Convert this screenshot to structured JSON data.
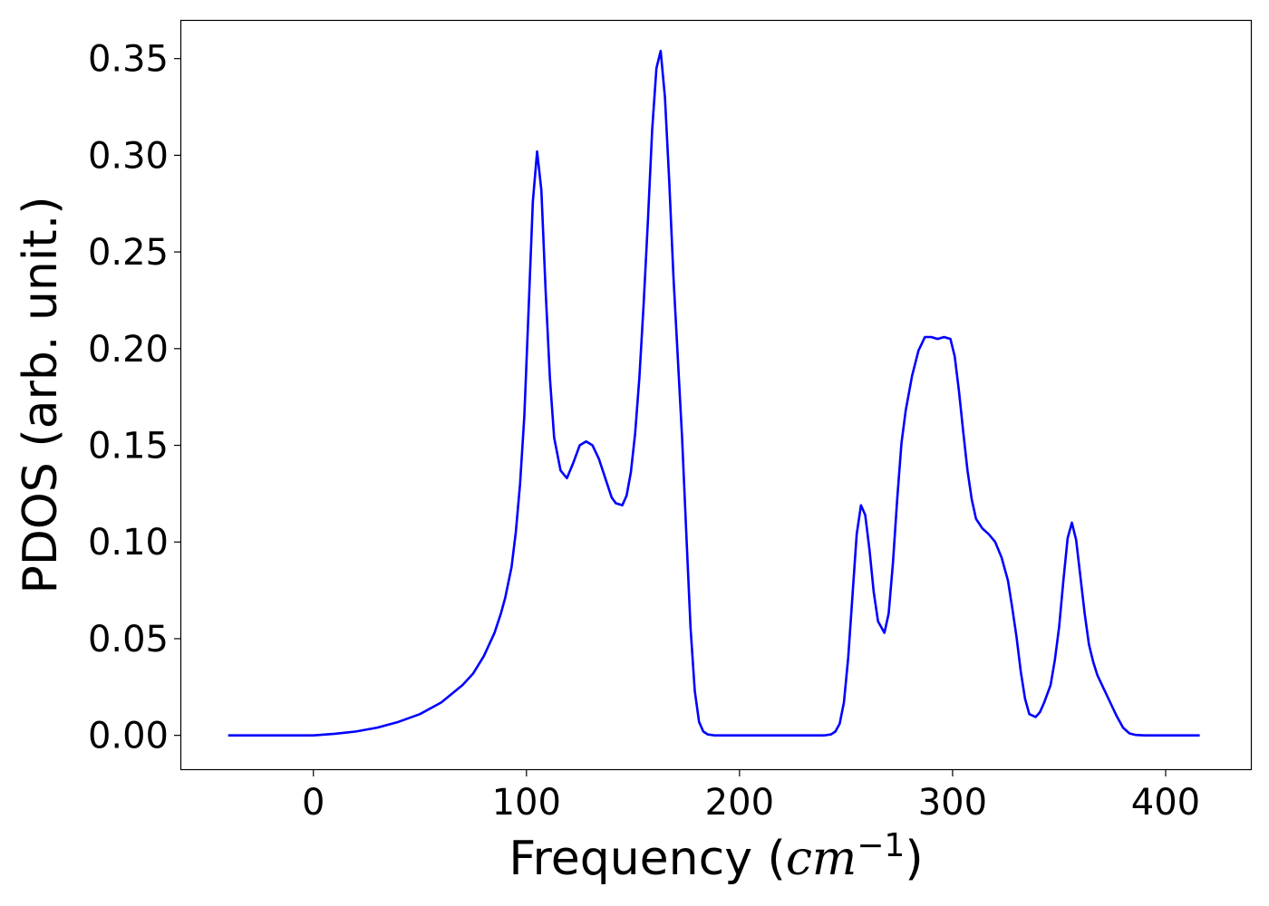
{
  "chart_data": {
    "type": "line",
    "title": "",
    "xlabel": "Frequency (cm⁻¹)",
    "xlabel_parts": {
      "prefix": "Frequency (",
      "unit": "cm",
      "exponent": "−1",
      "suffix": ")"
    },
    "ylabel": "PDOS (arb. unit.)",
    "xlim": [
      -62,
      440
    ],
    "ylim": [
      -0.0175,
      0.37
    ],
    "xticks": [
      0,
      100,
      200,
      300,
      400
    ],
    "xtick_labels": [
      "0",
      "100",
      "200",
      "300",
      "400"
    ],
    "yticks": [
      0.0,
      0.05,
      0.1,
      0.15,
      0.2,
      0.25,
      0.3,
      0.35
    ],
    "ytick_labels": [
      "0.00",
      "0.05",
      "0.10",
      "0.15",
      "0.20",
      "0.25",
      "0.30",
      "0.35"
    ],
    "grid": false,
    "legend": "none",
    "series": [
      {
        "color": "#0000ff",
        "points": [
          [
            -40,
            0.0
          ],
          [
            0,
            0.0
          ],
          [
            10,
            0.0008
          ],
          [
            20,
            0.002
          ],
          [
            30,
            0.004
          ],
          [
            40,
            0.007
          ],
          [
            50,
            0.011
          ],
          [
            60,
            0.017
          ],
          [
            70,
            0.026
          ],
          [
            75,
            0.032
          ],
          [
            80,
            0.041
          ],
          [
            85,
            0.053
          ],
          [
            88,
            0.063
          ],
          [
            90,
            0.071
          ],
          [
            93,
            0.087
          ],
          [
            95,
            0.105
          ],
          [
            97,
            0.13
          ],
          [
            99,
            0.165
          ],
          [
            101,
            0.22
          ],
          [
            103,
            0.276
          ],
          [
            105,
            0.302
          ],
          [
            107,
            0.282
          ],
          [
            109,
            0.23
          ],
          [
            111,
            0.185
          ],
          [
            113,
            0.154
          ],
          [
            116,
            0.137
          ],
          [
            119,
            0.133
          ],
          [
            122,
            0.141
          ],
          [
            125,
            0.15
          ],
          [
            128,
            0.152
          ],
          [
            131,
            0.15
          ],
          [
            134,
            0.143
          ],
          [
            137,
            0.133
          ],
          [
            140,
            0.123
          ],
          [
            142,
            0.12
          ],
          [
            145,
            0.119
          ],
          [
            147,
            0.124
          ],
          [
            149,
            0.136
          ],
          [
            151,
            0.156
          ],
          [
            153,
            0.185
          ],
          [
            155,
            0.223
          ],
          [
            157,
            0.266
          ],
          [
            159,
            0.313
          ],
          [
            161,
            0.345
          ],
          [
            163,
            0.354
          ],
          [
            165,
            0.33
          ],
          [
            167,
            0.287
          ],
          [
            169,
            0.237
          ],
          [
            171,
            0.196
          ],
          [
            173,
            0.155
          ],
          [
            175,
            0.105
          ],
          [
            177,
            0.056
          ],
          [
            179,
            0.023
          ],
          [
            181,
            0.007
          ],
          [
            183,
            0.002
          ],
          [
            185,
            0.0005
          ],
          [
            188,
            0.0
          ],
          [
            200,
            0.0
          ],
          [
            230,
            0.0
          ],
          [
            240,
            0.0
          ],
          [
            243,
            0.0005
          ],
          [
            245,
            0.002
          ],
          [
            247,
            0.006
          ],
          [
            249,
            0.017
          ],
          [
            251,
            0.04
          ],
          [
            253,
            0.072
          ],
          [
            255,
            0.104
          ],
          [
            257,
            0.119
          ],
          [
            259,
            0.114
          ],
          [
            261,
            0.096
          ],
          [
            263,
            0.074
          ],
          [
            265,
            0.059
          ],
          [
            268,
            0.053
          ],
          [
            270,
            0.063
          ],
          [
            272,
            0.089
          ],
          [
            274,
            0.122
          ],
          [
            276,
            0.151
          ],
          [
            278,
            0.168
          ],
          [
            281,
            0.186
          ],
          [
            284,
            0.199
          ],
          [
            287,
            0.206
          ],
          [
            290,
            0.206
          ],
          [
            293,
            0.205
          ],
          [
            296,
            0.206
          ],
          [
            299,
            0.205
          ],
          [
            301,
            0.196
          ],
          [
            303,
            0.178
          ],
          [
            305,
            0.157
          ],
          [
            307,
            0.137
          ],
          [
            309,
            0.122
          ],
          [
            311,
            0.112
          ],
          [
            314,
            0.107
          ],
          [
            317,
            0.104
          ],
          [
            320,
            0.1
          ],
          [
            323,
            0.092
          ],
          [
            326,
            0.08
          ],
          [
            328,
            0.066
          ],
          [
            330,
            0.051
          ],
          [
            332,
            0.033
          ],
          [
            334,
            0.019
          ],
          [
            336,
            0.011
          ],
          [
            339,
            0.0095
          ],
          [
            341,
            0.012
          ],
          [
            343,
            0.017
          ],
          [
            346,
            0.026
          ],
          [
            348,
            0.039
          ],
          [
            350,
            0.056
          ],
          [
            352,
            0.08
          ],
          [
            354,
            0.102
          ],
          [
            356,
            0.11
          ],
          [
            358,
            0.101
          ],
          [
            360,
            0.082
          ],
          [
            362,
            0.063
          ],
          [
            364,
            0.047
          ],
          [
            366,
            0.038
          ],
          [
            368,
            0.031
          ],
          [
            371,
            0.024
          ],
          [
            374,
            0.017
          ],
          [
            377,
            0.01
          ],
          [
            380,
            0.004
          ],
          [
            383,
            0.001
          ],
          [
            386,
            0.0002
          ],
          [
            390,
            0.0
          ],
          [
            416,
            0.0
          ]
        ]
      }
    ]
  }
}
